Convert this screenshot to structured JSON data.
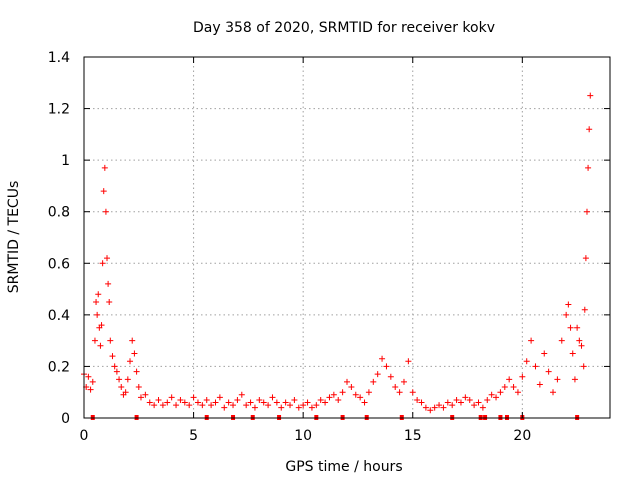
{
  "chart_data": {
    "type": "scatter",
    "title": "Day 358 of 2020, SRMTID for receiver kokv",
    "xlabel": "GPS time / hours",
    "ylabel": "SRMTID / TECUs",
    "xlim": [
      0,
      24
    ],
    "ylim": [
      0,
      1.4
    ],
    "xticks": [
      0,
      5,
      10,
      15,
      20
    ],
    "xtick_labels": [
      "0",
      "5",
      "10",
      "15",
      "20"
    ],
    "yticks": [
      0,
      0.2,
      0.4,
      0.6,
      0.8,
      1,
      1.2,
      1.4
    ],
    "ytick_labels": [
      "0",
      "0.2",
      "0.4",
      "0.6",
      "0.8",
      "1",
      "1.2",
      "1.4"
    ],
    "grid": true,
    "marker": "plus",
    "color": "#ff0000",
    "series": [
      {
        "name": "SRMTID",
        "points": [
          [
            0.0,
            0.17
          ],
          [
            0.1,
            0.12
          ],
          [
            0.2,
            0.16
          ],
          [
            0.3,
            0.11
          ],
          [
            0.4,
            0.14
          ],
          [
            0.5,
            0.3
          ],
          [
            0.55,
            0.45
          ],
          [
            0.6,
            0.4
          ],
          [
            0.65,
            0.48
          ],
          [
            0.7,
            0.35
          ],
          [
            0.75,
            0.28
          ],
          [
            0.8,
            0.36
          ],
          [
            0.85,
            0.6
          ],
          [
            0.9,
            0.88
          ],
          [
            0.95,
            0.97
          ],
          [
            1.0,
            0.8
          ],
          [
            1.05,
            0.62
          ],
          [
            1.1,
            0.52
          ],
          [
            1.15,
            0.45
          ],
          [
            1.2,
            0.3
          ],
          [
            1.3,
            0.24
          ],
          [
            1.4,
            0.2
          ],
          [
            1.5,
            0.18
          ],
          [
            1.6,
            0.15
          ],
          [
            1.7,
            0.12
          ],
          [
            1.8,
            0.09
          ],
          [
            1.9,
            0.1
          ],
          [
            2.0,
            0.15
          ],
          [
            2.1,
            0.22
          ],
          [
            2.2,
            0.3
          ],
          [
            2.3,
            0.25
          ],
          [
            2.4,
            0.18
          ],
          [
            2.5,
            0.12
          ],
          [
            2.6,
            0.08
          ],
          [
            2.8,
            0.09
          ],
          [
            3.0,
            0.06
          ],
          [
            3.2,
            0.05
          ],
          [
            3.4,
            0.07
          ],
          [
            3.6,
            0.05
          ],
          [
            3.8,
            0.06
          ],
          [
            4.0,
            0.08
          ],
          [
            4.2,
            0.05
          ],
          [
            4.4,
            0.07
          ],
          [
            4.6,
            0.06
          ],
          [
            4.8,
            0.05
          ],
          [
            5.0,
            0.08
          ],
          [
            5.2,
            0.06
          ],
          [
            5.4,
            0.05
          ],
          [
            5.6,
            0.07
          ],
          [
            5.8,
            0.05
          ],
          [
            6.0,
            0.06
          ],
          [
            6.2,
            0.08
          ],
          [
            6.4,
            0.04
          ],
          [
            6.6,
            0.06
          ],
          [
            6.8,
            0.05
          ],
          [
            7.0,
            0.07
          ],
          [
            7.2,
            0.09
          ],
          [
            7.4,
            0.05
          ],
          [
            7.6,
            0.06
          ],
          [
            7.8,
            0.04
          ],
          [
            8.0,
            0.07
          ],
          [
            8.2,
            0.06
          ],
          [
            8.4,
            0.05
          ],
          [
            8.6,
            0.08
          ],
          [
            8.8,
            0.06
          ],
          [
            9.0,
            0.04
          ],
          [
            9.2,
            0.06
          ],
          [
            9.4,
            0.05
          ],
          [
            9.6,
            0.07
          ],
          [
            9.8,
            0.04
          ],
          [
            10.0,
            0.05
          ],
          [
            10.2,
            0.06
          ],
          [
            10.4,
            0.04
          ],
          [
            10.6,
            0.05
          ],
          [
            10.8,
            0.07
          ],
          [
            11.0,
            0.06
          ],
          [
            11.2,
            0.08
          ],
          [
            11.4,
            0.09
          ],
          [
            11.6,
            0.07
          ],
          [
            11.8,
            0.1
          ],
          [
            12.0,
            0.14
          ],
          [
            12.2,
            0.12
          ],
          [
            12.4,
            0.09
          ],
          [
            12.6,
            0.08
          ],
          [
            12.8,
            0.06
          ],
          [
            13.0,
            0.1
          ],
          [
            13.2,
            0.14
          ],
          [
            13.4,
            0.17
          ],
          [
            13.6,
            0.23
          ],
          [
            13.8,
            0.2
          ],
          [
            14.0,
            0.16
          ],
          [
            14.2,
            0.12
          ],
          [
            14.4,
            0.1
          ],
          [
            14.6,
            0.14
          ],
          [
            14.8,
            0.22
          ],
          [
            15.0,
            0.1
          ],
          [
            15.2,
            0.07
          ],
          [
            15.4,
            0.06
          ],
          [
            15.6,
            0.04
          ],
          [
            15.8,
            0.03
          ],
          [
            16.0,
            0.04
          ],
          [
            16.2,
            0.05
          ],
          [
            16.4,
            0.04
          ],
          [
            16.6,
            0.06
          ],
          [
            16.8,
            0.05
          ],
          [
            17.0,
            0.07
          ],
          [
            17.2,
            0.06
          ],
          [
            17.4,
            0.08
          ],
          [
            17.6,
            0.07
          ],
          [
            17.8,
            0.05
          ],
          [
            18.0,
            0.06
          ],
          [
            18.2,
            0.04
          ],
          [
            18.4,
            0.07
          ],
          [
            18.6,
            0.09
          ],
          [
            18.8,
            0.08
          ],
          [
            19.0,
            0.1
          ],
          [
            19.2,
            0.12
          ],
          [
            19.4,
            0.15
          ],
          [
            19.6,
            0.12
          ],
          [
            19.8,
            0.1
          ],
          [
            20.0,
            0.16
          ],
          [
            20.2,
            0.22
          ],
          [
            20.4,
            0.3
          ],
          [
            20.6,
            0.2
          ],
          [
            20.8,
            0.13
          ],
          [
            21.0,
            0.25
          ],
          [
            21.2,
            0.18
          ],
          [
            21.4,
            0.1
          ],
          [
            21.6,
            0.15
          ],
          [
            21.8,
            0.3
          ],
          [
            22.0,
            0.4
          ],
          [
            22.1,
            0.44
          ],
          [
            22.2,
            0.35
          ],
          [
            22.3,
            0.25
          ],
          [
            22.4,
            0.15
          ],
          [
            22.5,
            0.35
          ],
          [
            22.6,
            0.3
          ],
          [
            22.7,
            0.28
          ],
          [
            22.8,
            0.2
          ],
          [
            22.85,
            0.42
          ],
          [
            22.9,
            0.62
          ],
          [
            22.95,
            0.8
          ],
          [
            23.0,
            0.97
          ],
          [
            23.05,
            1.12
          ],
          [
            23.1,
            1.25
          ]
        ]
      }
    ],
    "gap_markers_x": [
      0.4,
      2.4,
      5.6,
      6.8,
      7.7,
      8.9,
      10.6,
      11.8,
      12.9,
      14.5,
      16.8,
      18.1,
      18.3,
      19.0,
      19.3,
      20.0,
      22.5
    ]
  }
}
